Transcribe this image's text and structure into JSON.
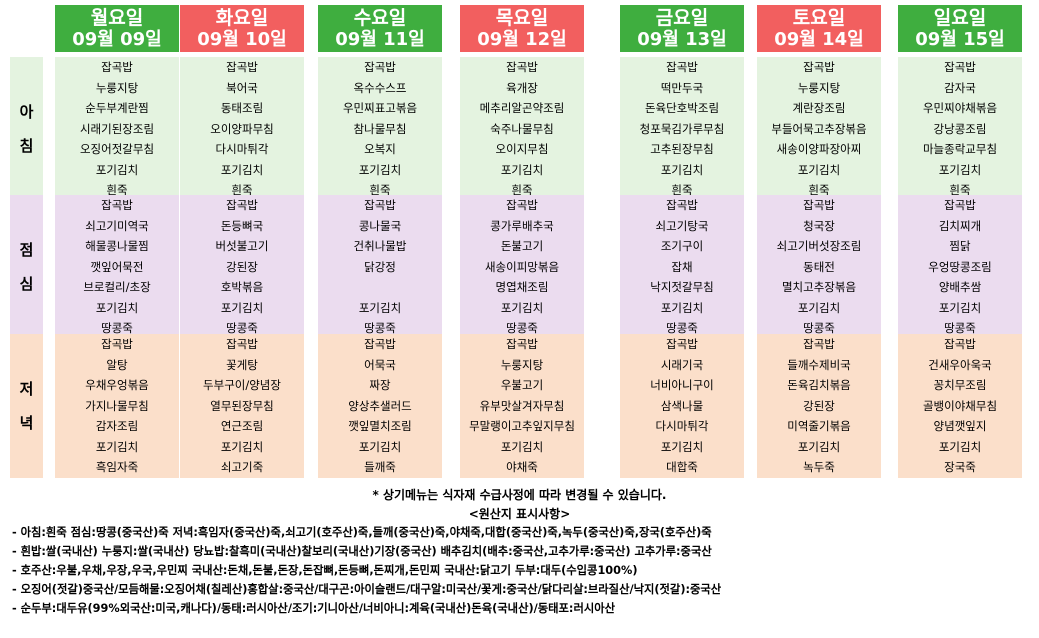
{
  "days": [
    {
      "name": "월요일",
      "date": "09월 09일",
      "color": "#3fae3f",
      "breakfast": [
        "잡곡밥",
        "누룽지탕",
        "순두부계란찜",
        "시래기된장조림",
        "오징어젓갈무침",
        "포기김치",
        "흰죽"
      ],
      "lunch": [
        "잡곡밥",
        "쇠고기미역국",
        "해물콩나물찜",
        "깻잎어묵전",
        "브로컬리/초장",
        "포기김치",
        "땅콩죽"
      ],
      "dinner": [
        "잡곡밥",
        "알탕",
        "우채우엉볶음",
        "가지나물무침",
        "감자조림",
        "포기김치",
        "흑임자죽"
      ]
    },
    {
      "name": "화요일",
      "date": "09월 10일",
      "color": "#f25f5f",
      "breakfast": [
        "잡곡밥",
        "북어국",
        "동태조림",
        "오이양파무침",
        "다시마튀각",
        "포기김치",
        "흰죽"
      ],
      "lunch": [
        "잡곡밥",
        "돈등뼈국",
        "버섯불고기",
        "강된장",
        "호박볶음",
        "포기김치",
        "땅콩죽"
      ],
      "dinner": [
        "잡곡밥",
        "꽃게탕",
        "두부구이/양념장",
        "열무된장무침",
        "연근조림",
        "포기김치",
        "쇠고기죽"
      ]
    },
    {
      "name": "수요일",
      "date": "09월 11일",
      "color": "#3fae3f",
      "breakfast": [
        "잡곡밥",
        "옥수수스프",
        "우민찌표고볶음",
        "참나물무침",
        "오복지",
        "포기김치",
        "흰죽"
      ],
      "lunch": [
        "잡곡밥",
        "콩나물국",
        "건취나물밥",
        "닭강정",
        "",
        "포기김치",
        "땅콩죽"
      ],
      "dinner": [
        "잡곡밥",
        "어묵국",
        "짜장",
        "양상추샐러드",
        "깻잎멸치조림",
        "포기김치",
        "들깨죽"
      ]
    },
    {
      "name": "목요일",
      "date": "09월 12일",
      "color": "#f25f5f",
      "breakfast": [
        "잡곡밥",
        "육개장",
        "메추리알곤약조림",
        "숙주나물무침",
        "오이지무침",
        "포기김치",
        "흰죽"
      ],
      "lunch": [
        "잡곡밥",
        "콩가루배추국",
        "돈불고기",
        "새송이피망볶음",
        "명엽채조림",
        "포기김치",
        "땅콩죽"
      ],
      "dinner": [
        "잡곡밥",
        "누룽지탕",
        "우불고기",
        "유부맛살겨자무침",
        "무말랭이고추잎지무침",
        "포기김치",
        "야채죽"
      ]
    },
    {
      "name": "금요일",
      "date": "09월 13일",
      "color": "#3fae3f",
      "breakfast": [
        "잡곡밥",
        "떡만두국",
        "돈육단호박조림",
        "청포묵김가루무침",
        "고추된장무침",
        "포기김치",
        "흰죽"
      ],
      "lunch": [
        "잡곡밥",
        "쇠고기탕국",
        "조기구이",
        "잡채",
        "낙지젓갈무침",
        "포기김치",
        "땅콩죽"
      ],
      "dinner": [
        "잡곡밥",
        "시래기국",
        "너비아니구이",
        "삼색나물",
        "다시마튀각",
        "포기김치",
        "대합죽"
      ]
    },
    {
      "name": "토요일",
      "date": "09월 14일",
      "color": "#f25f5f",
      "breakfast": [
        "잡곡밥",
        "누룽지탕",
        "계란장조림",
        "부들어묵고추장볶음",
        "새송이양파장아찌",
        "포기김치",
        "흰죽"
      ],
      "lunch": [
        "잡곡밥",
        "청국장",
        "쇠고기버섯장조림",
        "동태전",
        "멸치고추장볶음",
        "포기김치",
        "땅콩죽"
      ],
      "dinner": [
        "잡곡밥",
        "들깨수제비국",
        "돈육김치볶음",
        "강된장",
        "미역줄기볶음",
        "포기김치",
        "녹두죽"
      ]
    },
    {
      "name": "일요일",
      "date": "09월 15일",
      "color": "#3fae3f",
      "breakfast": [
        "잡곡밥",
        "감자국",
        "우민찌야채볶음",
        "강낭콩조림",
        "마늘종락교무침",
        "포기김치",
        "흰죽"
      ],
      "lunch": [
        "잡곡밥",
        "김치찌개",
        "찜닭",
        "우엉땅콩조림",
        "양배추쌈",
        "포기김치",
        "땅콩죽"
      ],
      "dinner": [
        "잡곡밥",
        "건새우아욱국",
        "꽁치무조림",
        "골뱅이야채무침",
        "양념깻잎지",
        "포기김치",
        "장국죽"
      ]
    }
  ],
  "meal_labels": {
    "breakfast": [
      "아",
      "침"
    ],
    "lunch": [
      "점",
      "심"
    ],
    "dinner": [
      "저",
      "녁"
    ]
  },
  "colors": {
    "breakfast_bg": "#e4f3e0",
    "lunch_bg": "#ebdcef",
    "dinner_bg": "#fbdfca",
    "header_green": "#3fae3f",
    "header_red": "#f25f5f"
  },
  "notice": "* 상기메뉴는 식자재 수급사정에 따라 변경될 수 있습니다.",
  "origin_title": "<원산지 표시사항>",
  "origin_lines": [
    "- 아침:흰죽 점심:땅콩(중국산)죽 저녁:흑임자(중국산)죽,쇠고기(호주산)죽,들깨(중국산)죽,야채죽,대합(중국산)죽,녹두(중국산)죽,장국(호주산)죽",
    "- 흰밥:쌀(국내산) 누룽지:쌀(국내산) 당뇨밥:찰흑미(국내산)찰보리(국내산)기장(중국산) 배추김치(배추:중국산,고추가루:중국산) 고추가루:중국산",
    "- 호주산:우불,우채,우장,우국,우민찌 국내산:돈채,돈불,돈장,돈잡뼈,돈등뼈,돈찌개,돈민찌 국내산:닭고기 두부:대두(수입콩100%)",
    "- 오징어(젓갈)중국산/모듬해물:오징어채(칠레산)홍합살:중국산/대구곤:아이슬랜드/대구알:미국산/꽃게:중국산/닭다리살:브라질산/낙지(젓갈):중국산",
    "- 순두부:대두유(99%외국산:미국,캐나다)/동태:러시아산/조기:기니아산/너비아니:계육(국내산)돈육(국내산)/동태포:러시아산"
  ]
}
